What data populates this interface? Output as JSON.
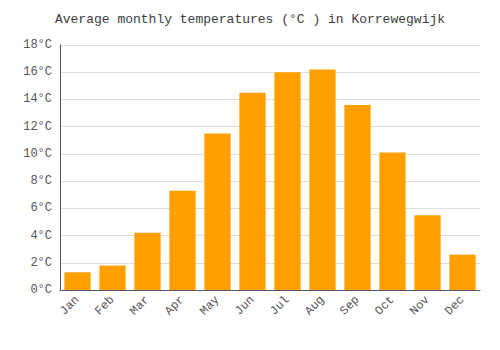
{
  "chart_data": {
    "type": "bar",
    "title": "Average monthly temperatures (°C ) in Korrewegwijk",
    "categories": [
      "Jan",
      "Feb",
      "Mar",
      "Apr",
      "May",
      "Jun",
      "Jul",
      "Aug",
      "Sep",
      "Oct",
      "Nov",
      "Dec"
    ],
    "values": [
      1.3,
      1.8,
      4.2,
      7.3,
      11.5,
      14.5,
      16.0,
      16.2,
      13.6,
      10.1,
      5.5,
      2.6
    ],
    "color": "#FFA000",
    "ylim": [
      0,
      18
    ],
    "yticks": [
      {
        "value": 0,
        "label": "0°C"
      },
      {
        "value": 2,
        "label": "2°C"
      },
      {
        "value": 4,
        "label": "4°C"
      },
      {
        "value": 6,
        "label": "6°C"
      },
      {
        "value": 8,
        "label": "8°C"
      },
      {
        "value": 10,
        "label": "10°C"
      },
      {
        "value": 12,
        "label": "12°C"
      },
      {
        "value": 14,
        "label": "14°C"
      },
      {
        "value": 16,
        "label": "16°C"
      },
      {
        "value": 18,
        "label": "18°C"
      }
    ],
    "grid": true
  }
}
